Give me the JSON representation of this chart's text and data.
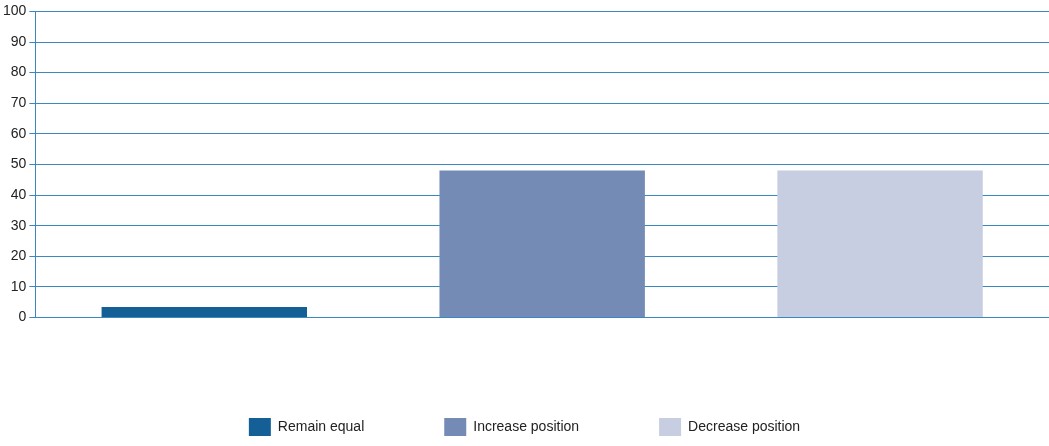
{
  "chart_data": {
    "type": "bar",
    "categories": [
      null,
      null,
      null
    ],
    "series": [
      {
        "name": "Remain equal",
        "color": "#155f97",
        "values": [
          3.5,
          null,
          null
        ]
      },
      {
        "name": "Increase position",
        "color": "#738bb5",
        "values": [
          null,
          48,
          null
        ]
      },
      {
        "name": "Decrease position",
        "color": "#c8cee2",
        "values": [
          null,
          null,
          48
        ]
      }
    ],
    "ylim": [
      0,
      100
    ],
    "yticks": [
      0,
      10,
      20,
      30,
      40,
      50,
      60,
      70,
      80,
      90,
      100
    ],
    "grid": "y",
    "legend": "bottom"
  }
}
